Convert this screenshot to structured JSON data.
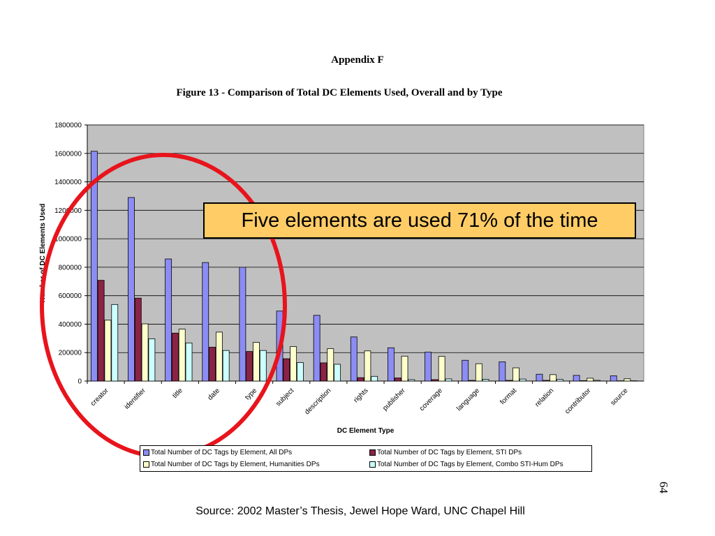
{
  "header": {
    "appendix": "Appendix F",
    "figure_title": "Figure 13 - Comparison of Total DC Elements Used, Overall and by Type"
  },
  "callout": {
    "text": "Five elements are used 71% of the time"
  },
  "footer": {
    "source": "Source: 2002 Master’s Thesis, Jewel Hope Ward, UNC Chapel Hill",
    "page_number": "64"
  },
  "legend": {
    "items": [
      "Total Number of DC Tags by Element, All DPs",
      "Total Number of DC Tags by Element, STI DPs",
      "Total Number of DC Tags by Element, Humanities DPs",
      "Total Number of DC Tags by Element, Combo STI-Hum DPs"
    ]
  },
  "colors": {
    "plot_background": "#c0c0c0",
    "callout_background": "#ffcc66",
    "highlight_ellipse": "#e8141c",
    "series": [
      "#8c8cf5",
      "#8b2346",
      "#ffffcc",
      "#ccffff"
    ]
  },
  "chart_data": {
    "type": "bar",
    "categories": [
      "creator",
      "identifier",
      "title",
      "date",
      "type",
      "subject",
      "description",
      "rights",
      "publisher",
      "coverage",
      "language",
      "format",
      "relation",
      "contributor",
      "source"
    ],
    "series": [
      {
        "name": "Total Number of DC Tags by Element, All DPs",
        "values": [
          1615000,
          1290000,
          858000,
          833000,
          800000,
          492000,
          462000,
          310000,
          234000,
          203000,
          146000,
          135000,
          48000,
          40000,
          37000
        ]
      },
      {
        "name": "Total Number of DC Tags by Element, STI DPs",
        "values": [
          708000,
          583000,
          337000,
          238000,
          208000,
          157000,
          128000,
          24000,
          22000,
          10000,
          5000,
          5000,
          5000,
          3000,
          2000
        ]
      },
      {
        "name": "Total Number of DC Tags by Element, Humanities DPs",
        "values": [
          428000,
          402000,
          365000,
          344000,
          272000,
          242000,
          228000,
          212000,
          175000,
          173000,
          122000,
          93000,
          45000,
          20000,
          16000
        ]
      },
      {
        "name": "Total Number of DC Tags by Element, Combo STI-Hum DPs",
        "values": [
          538000,
          297000,
          268000,
          215000,
          215000,
          130000,
          118000,
          33000,
          10000,
          15000,
          12000,
          14000,
          12000,
          5000,
          2000
        ]
      }
    ],
    "title": "Figure 13 - Comparison of Total DC Elements Used, Overall and by Type",
    "xlabel": "DC Element Type",
    "ylabel": "Number of DC Elements Used",
    "ylim": [
      0,
      1800000
    ],
    "yticks": [
      0,
      200000,
      400000,
      600000,
      800000,
      1000000,
      1200000,
      1400000,
      1600000,
      1800000
    ],
    "grid": true,
    "legend_position": "bottom"
  }
}
